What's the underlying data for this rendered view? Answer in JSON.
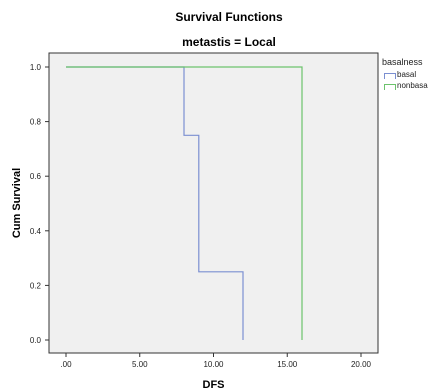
{
  "title": "Survival Functions",
  "subtitle": "metastis = Local",
  "legend": {
    "title": "basalness",
    "items": [
      {
        "label": "basal",
        "color": "#7b8fd1"
      },
      {
        "label": "nonbasa",
        "color": "#6cc36c"
      }
    ]
  },
  "chart_data": {
    "type": "line",
    "step": true,
    "title": "Survival Functions",
    "subtitle": "metastis = Local",
    "xlabel": "DFS",
    "ylabel": "Cum Survival",
    "xlim": [
      0,
      20
    ],
    "ylim": [
      0,
      1
    ],
    "xticks": [
      0,
      5,
      10,
      15,
      20
    ],
    "xtick_labels": [
      ".00",
      "5.00",
      "10.00",
      "15.00",
      "20.00"
    ],
    "yticks": [
      0,
      0.2,
      0.4,
      0.6,
      0.8,
      1.0
    ],
    "ytick_labels": [
      "0.0",
      "0.2",
      "0.4",
      "0.6",
      "0.8",
      "1.0"
    ],
    "background": "#f0f0f0",
    "grid": false,
    "legend_position": "right",
    "series": [
      {
        "name": "basal",
        "color": "#7b8fd1",
        "x": [
          0,
          8,
          8,
          9,
          9,
          12,
          12
        ],
        "y": [
          1.0,
          1.0,
          0.75,
          0.75,
          0.25,
          0.25,
          0.0
        ]
      },
      {
        "name": "nonbasa",
        "color": "#6cc36c",
        "x": [
          0,
          16,
          16
        ],
        "y": [
          1.0,
          1.0,
          0.0
        ]
      }
    ]
  }
}
